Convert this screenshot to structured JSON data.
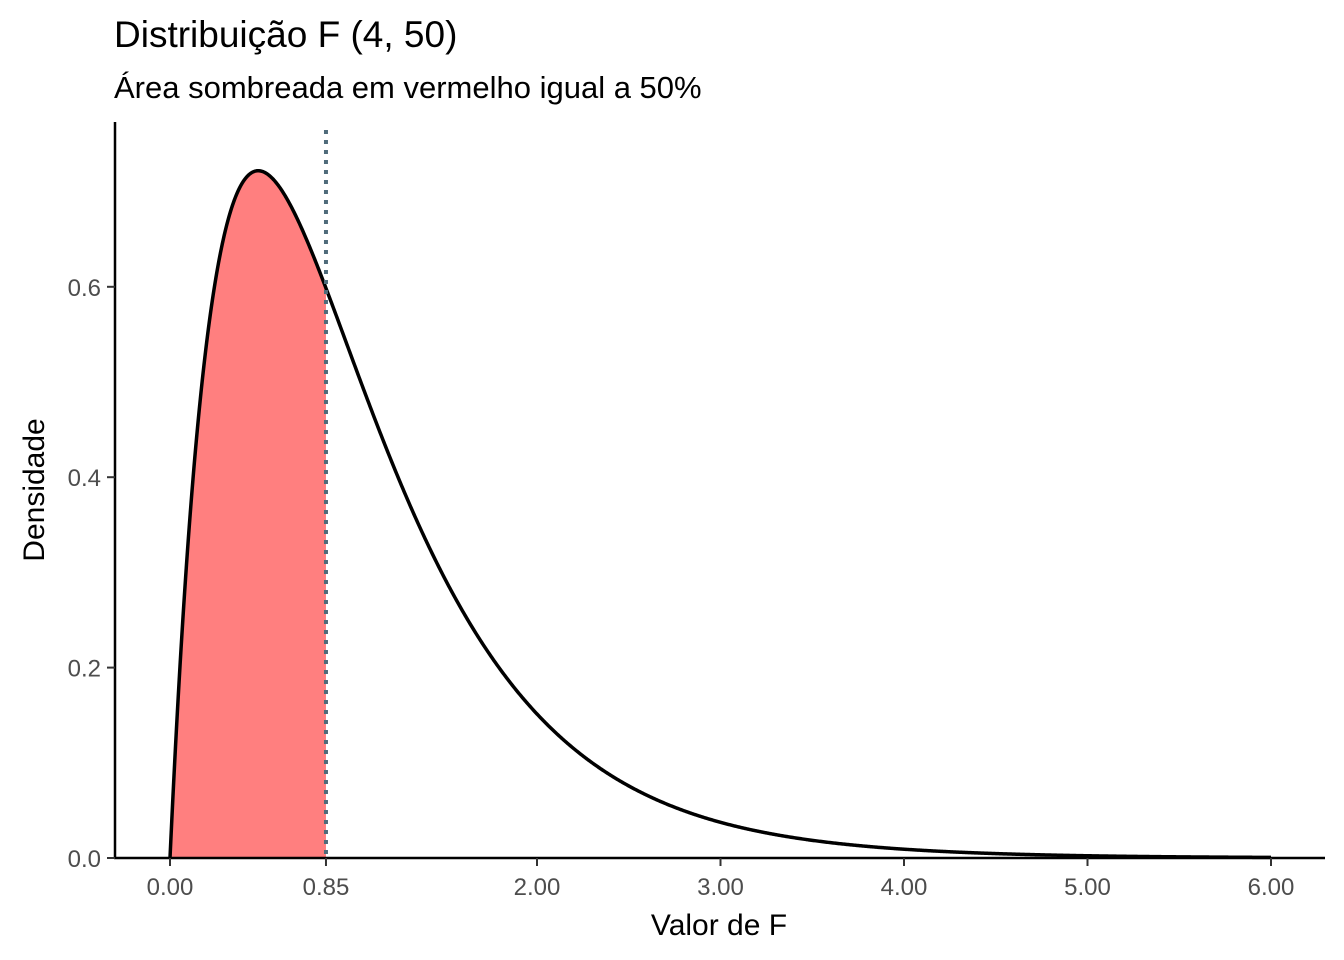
{
  "chart_data": {
    "type": "area",
    "title": "Distribuição F (4, 50)",
    "subtitle": "Área sombreada em vermelho igual a 50%",
    "xlabel": "Valor de F",
    "ylabel": "Densidade",
    "distribution": {
      "name": "F",
      "df1": 4,
      "df2": 50
    },
    "xlim": [
      0,
      6
    ],
    "ylim": [
      0,
      0.76
    ],
    "x_ticks": [
      0,
      0.85,
      2,
      3,
      4,
      5,
      6
    ],
    "x_tick_labels": [
      "0.00",
      "0.85",
      "2.00",
      "3.00",
      "4.00",
      "5.00",
      "6.00"
    ],
    "y_ticks": [
      0.0,
      0.2,
      0.4,
      0.6
    ],
    "y_tick_labels": [
      "0.0",
      "0.2",
      "0.4",
      "0.6"
    ],
    "shaded_region": {
      "from": 0,
      "to": 0.85,
      "color": "#ff7f7f",
      "area": 0.5
    },
    "reference_line": {
      "x": 0.85,
      "style": "dotted",
      "color": "#4f6b7a"
    },
    "curve_color": "#000000",
    "grid": false,
    "legend": "none"
  }
}
